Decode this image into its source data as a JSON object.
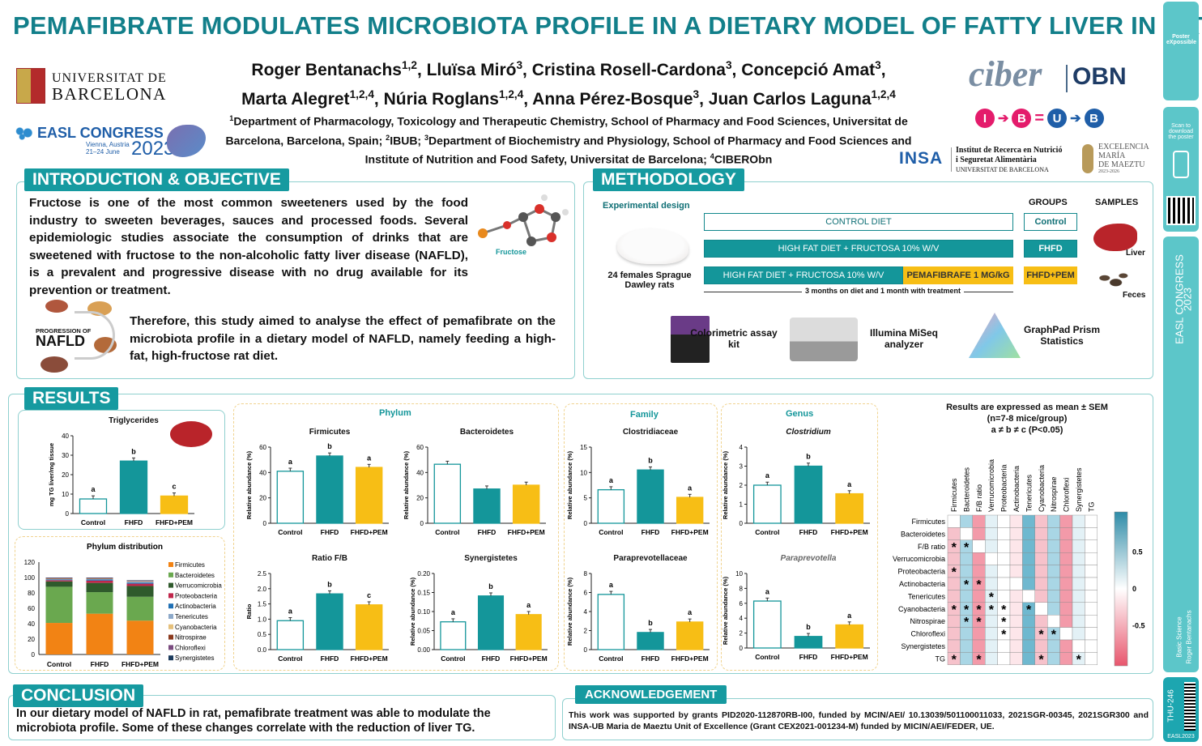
{
  "title": "PEMAFIBRATE MODULATES MICROBIOTA PROFILE IN A DIETARY MODEL OF FATTY LIVER IN RAT",
  "authors_line1": "Roger Bentanachs1,2, Lluïsa Miró3, Cristina Rosell-Cardona3, Concepció Amat3,",
  "authors_line2": "Marta Alegret1,2,4, Núria Roglans1,2,4, Anna Pérez-Bosque3, Juan Carlos Laguna1,2,4",
  "affiliations": "1Department of Pharmacology, Toxicology and Therapeutic Chemistry, School of Pharmacy and Food Sciences, Universitat de Barcelona, Barcelona, Spain; 2IBUB; 3Department of Biochemistry and Physiology, School of Pharmacy and Food Sciences and Institute of Nutrition and Food Safety, Universitat de Barcelona; 4CIBERObn",
  "logos": {
    "ub_line1": "UNIVERSITAT DE",
    "ub_line2": "BARCELONA",
    "easl_name": "EASL CONGRESS",
    "easl_city": "Vienna, Austria",
    "easl_dates": "21–24 June",
    "easl_year": "2023",
    "ciber": "ciber",
    "obn": "OBN",
    "ibub": [
      "I",
      "B",
      "U",
      "B"
    ],
    "insa": "INSA",
    "insa_text1": "Institut de Recerca en Nutrició",
    "insa_text2": "i Seguretat Alimentària",
    "insa_text3": "UNIVERSITAT DE BARCELONA",
    "maeztu1": "EXCELENCIA",
    "maeztu2": "MARÍA",
    "maeztu3": "DE MAEZTU",
    "maeztu4": "2023-2026"
  },
  "sections": {
    "intro": "INTRODUCTION & OBJECTIVE",
    "methods": "METHODOLOGY",
    "results": "RESULTS",
    "conclusion": "CONCLUSION",
    "ack": "ACKNOWLEDGEMENT"
  },
  "intro": {
    "p1": "Fructose is one of the most common sweeteners used by the food industry to sweeten beverages, sauces and processed foods. Several epidemiologic studies associate the consumption of drinks that are sweetened with fructose to the non-alcoholic fatty liver disease (NAFLD), is a prevalent and progressive disease with no drug available for its prevention or treatment.",
    "p2": "Therefore, this study aimed to analyse the effect of pemafibrate on the microbiota profile in a dietary model of NAFLD, namely feeding a high-fat, high-fructose rat diet.",
    "fructose_label": "Fructose",
    "nafld_small": "PROGRESSION OF",
    "nafld_big": "NAFLD"
  },
  "methods": {
    "exp_design": "Experimental design",
    "groups_hdr": "GROUPS",
    "samples_hdr": "SAMPLES",
    "diet1": "CONTROL DIET",
    "diet2": "HIGH FAT DIET + FRUCTOSA 10% W/V",
    "diet3": "HIGH FAT DIET + FRUCTOSA 10% W/V",
    "pema": "PEMAFIBRAFE 1 MG/kG",
    "g1": "Control",
    "g2": "FHFD",
    "g3": "FHFD+PEM",
    "rats": "24 females Sprague Dawley rats",
    "duration": "3 months on diet and 1 month with treatment",
    "liver": "Liver",
    "feces": "Feces",
    "tool1": "Colorimetric assay kit",
    "tool2": "Illumina MiSeq analyzer",
    "tool3": "GraphPad Prism Statistics"
  },
  "results": {
    "phylum_hdr": "Phylum",
    "family_hdr": "Family",
    "genus_hdr": "Genus",
    "stats1": "Results are expressed as mean ± SEM",
    "stats2": "(n=7-8 mice/group)",
    "stats3": "a ≠ b ≠ c (P<0.05)",
    "dist_title": "Phylum distribution"
  },
  "chart_data": [
    {
      "type": "bar",
      "title": "Triglycerides",
      "ylabel": "mg TG liver/mg tissue",
      "categories": [
        "Control",
        "FHFD",
        "FHFD+PEM"
      ],
      "values": [
        7.5,
        27,
        9
      ],
      "ylim": [
        0,
        40
      ],
      "letters": [
        "a",
        "b",
        "c"
      ]
    },
    {
      "type": "bar",
      "title": "Firmicutes",
      "ylabel": "Relative abundance (%)",
      "categories": [
        "Control",
        "FHFD",
        "FHFD+PEM"
      ],
      "values": [
        41,
        53,
        44
      ],
      "ylim": [
        0,
        60
      ],
      "letters": [
        "a",
        "b",
        "a"
      ]
    },
    {
      "type": "bar",
      "title": "Bacteroidetes",
      "ylabel": "Relative abundance (%)",
      "categories": [
        "Control",
        "FHFD",
        "FHFD+PEM"
      ],
      "values": [
        46.5,
        27,
        30
      ],
      "ylim": [
        0,
        60
      ],
      "letters": [
        "",
        "",
        ""
      ]
    },
    {
      "type": "bar",
      "title": "Ratio F/B",
      "ylabel": "Ratio",
      "categories": [
        "Control",
        "FHFD",
        "FHFD+PEM"
      ],
      "values": [
        0.95,
        1.83,
        1.47
      ],
      "ylim": [
        0,
        2.5
      ],
      "letters": [
        "a",
        "b",
        "c"
      ]
    },
    {
      "type": "bar",
      "title": "Synergistetes",
      "ylabel": "Relative abundance (%)",
      "categories": [
        "Control",
        "FHFD",
        "FHFD+PEM"
      ],
      "values": [
        0.073,
        0.141,
        0.092
      ],
      "ylim": [
        0,
        0.2
      ],
      "letters": [
        "a",
        "b",
        "a"
      ]
    },
    {
      "type": "bar",
      "title": "Clostridiaceae",
      "ylabel": "Relative abundance (%)",
      "categories": [
        "Control",
        "FHFD",
        "FHFD+PEM"
      ],
      "values": [
        6.6,
        10.5,
        5.1
      ],
      "ylim": [
        0,
        15
      ],
      "letters": [
        "a",
        "b",
        "a"
      ]
    },
    {
      "type": "bar",
      "title": "Paraprevotellaceae",
      "ylabel": "Relative abundance (%)",
      "categories": [
        "Control",
        "FHFD",
        "FHFD+PEM"
      ],
      "values": [
        5.8,
        1.8,
        2.9
      ],
      "ylim": [
        0,
        8
      ],
      "letters": [
        "a",
        "b",
        "a"
      ]
    },
    {
      "type": "bar",
      "title": "Clostridium",
      "ylabel": "Relative abundance (%)",
      "categories": [
        "Control",
        "FHFD",
        "FHFD+PEM"
      ],
      "values": [
        2.0,
        3.0,
        1.55
      ],
      "ylim": [
        0,
        4
      ],
      "letters": [
        "a",
        "b",
        "a"
      ]
    },
    {
      "type": "bar",
      "title": "Paraprevotella",
      "ylabel": "Relative abundance (%)",
      "categories": [
        "Control",
        "FHFD",
        "FHFD+PEM"
      ],
      "values": [
        6.3,
        1.55,
        3.1
      ],
      "ylim": [
        0,
        10
      ],
      "letters": [
        "a",
        "b",
        "a"
      ]
    },
    {
      "type": "bar",
      "title": "Phylum distribution",
      "stacked": true,
      "categories": [
        "Control",
        "FHFD",
        "FHFD+PEM"
      ],
      "ylim": [
        0,
        120
      ],
      "series": [
        {
          "name": "Firmicutes",
          "color": "#f28314",
          "values": [
            41,
            53,
            44
          ]
        },
        {
          "name": "Bacteroidetes",
          "color": "#6aa84f",
          "values": [
            47,
            28,
            31
          ]
        },
        {
          "name": "Verrucomicrobia",
          "color": "#2f5a2c",
          "values": [
            7,
            12,
            14
          ]
        },
        {
          "name": "Proteobacteria",
          "color": "#c0264b",
          "values": [
            1.5,
            3,
            3
          ]
        },
        {
          "name": "Actinobacteria",
          "color": "#1f6fb4",
          "values": [
            1,
            1.5,
            1.5
          ]
        },
        {
          "name": "Tenericutes",
          "color": "#8da9c9",
          "values": [
            0.5,
            0.5,
            1
          ]
        },
        {
          "name": "Cyanobacteria",
          "color": "#e5c07b",
          "values": [
            0.5,
            0.5,
            0.5
          ]
        },
        {
          "name": "Nitrospirae",
          "color": "#8b3a1e",
          "values": [
            0.5,
            0.5,
            0.5
          ]
        },
        {
          "name": "Chloroflexi",
          "color": "#7a4b7f",
          "values": [
            0.5,
            0.5,
            0.5
          ]
        },
        {
          "name": "Synergistetes",
          "color": "#1b3a5c",
          "values": [
            0.5,
            0.5,
            0.5
          ]
        }
      ]
    },
    {
      "type": "heatmap",
      "labels": [
        "Firmicutes",
        "Bacteroidetes",
        "F/B ratio",
        "Verrucomicrobia",
        "Proteobacteria",
        "Actinobacteria",
        "Tenericutes",
        "Cyanobacteria",
        "Nitrospirae",
        "Chloroflexi",
        "Synergistetes",
        "TG"
      ],
      "scale_ticks": [
        "0.5",
        "0",
        "-0.5"
      ],
      "stars": [
        [
          2,
          0
        ],
        [
          2,
          1
        ],
        [
          4,
          0
        ],
        [
          5,
          1
        ],
        [
          5,
          2
        ],
        [
          6,
          3
        ],
        [
          7,
          0
        ],
        [
          7,
          1
        ],
        [
          7,
          2
        ],
        [
          7,
          3
        ],
        [
          7,
          4
        ],
        [
          7,
          6
        ],
        [
          8,
          1
        ],
        [
          8,
          2
        ],
        [
          8,
          4
        ],
        [
          9,
          4
        ],
        [
          9,
          7
        ],
        [
          9,
          8
        ],
        [
          11,
          0
        ],
        [
          11,
          2
        ],
        [
          11,
          7
        ],
        [
          11,
          10
        ]
      ]
    }
  ],
  "conclusion": "In our dietary model of NAFLD in rat, pemafibrate treatment was able to modulate the microbiota profile. Some of these changes correlate with the reduction of liver TG.",
  "ack": "This work was supported by grants PID2020-112870RB-I00, funded by MCIN/AEI/ 10.13039/501100011033, 2021SGR-00345, 2021SGR300 and INSA-UB Maria de Maeztu Unit of Excellence (Grant CEX2021-001234-M) funded by MICIN/AEI/FEDER, UE.",
  "sidebar": {
    "poster": "Poster eXpossible",
    "scan": "Scan to download the poster",
    "congress": "EASL CONGRESS",
    "congress_year": "2023",
    "category": "Basic Science",
    "author": "Roger Bentanachs",
    "code": "THU-246",
    "easl2023": "EASL2023"
  }
}
